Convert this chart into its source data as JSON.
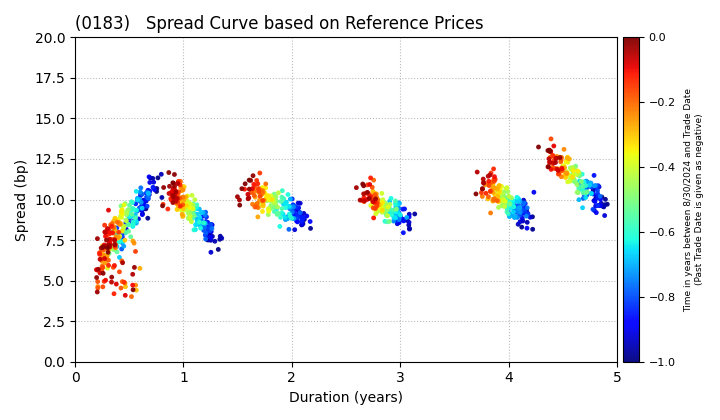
{
  "title": "(0183)   Spread Curve based on Reference Prices",
  "xlabel": "Duration (years)",
  "ylabel": "Spread (bp)",
  "xlim": [
    0,
    5
  ],
  "ylim": [
    0.0,
    20.0
  ],
  "yticks": [
    0.0,
    2.5,
    5.0,
    7.5,
    10.0,
    12.5,
    15.0,
    17.5,
    20.0
  ],
  "xticks": [
    0,
    1,
    2,
    3,
    4,
    5
  ],
  "colorbar_label_line1": "Time in years between 8/30/2024 and Trade Date",
  "colorbar_label_line2": "(Past Trade Date is given as negative)",
  "cmap": "jet",
  "color_vmin": -1.0,
  "color_vmax": 0.0,
  "colorbar_ticks": [
    0.0,
    -0.2,
    -0.4,
    -0.6,
    -0.8,
    -1.0
  ],
  "point_size": 12,
  "background_color": "#ffffff",
  "grid_color": "#aaaaaa",
  "seed": 42
}
